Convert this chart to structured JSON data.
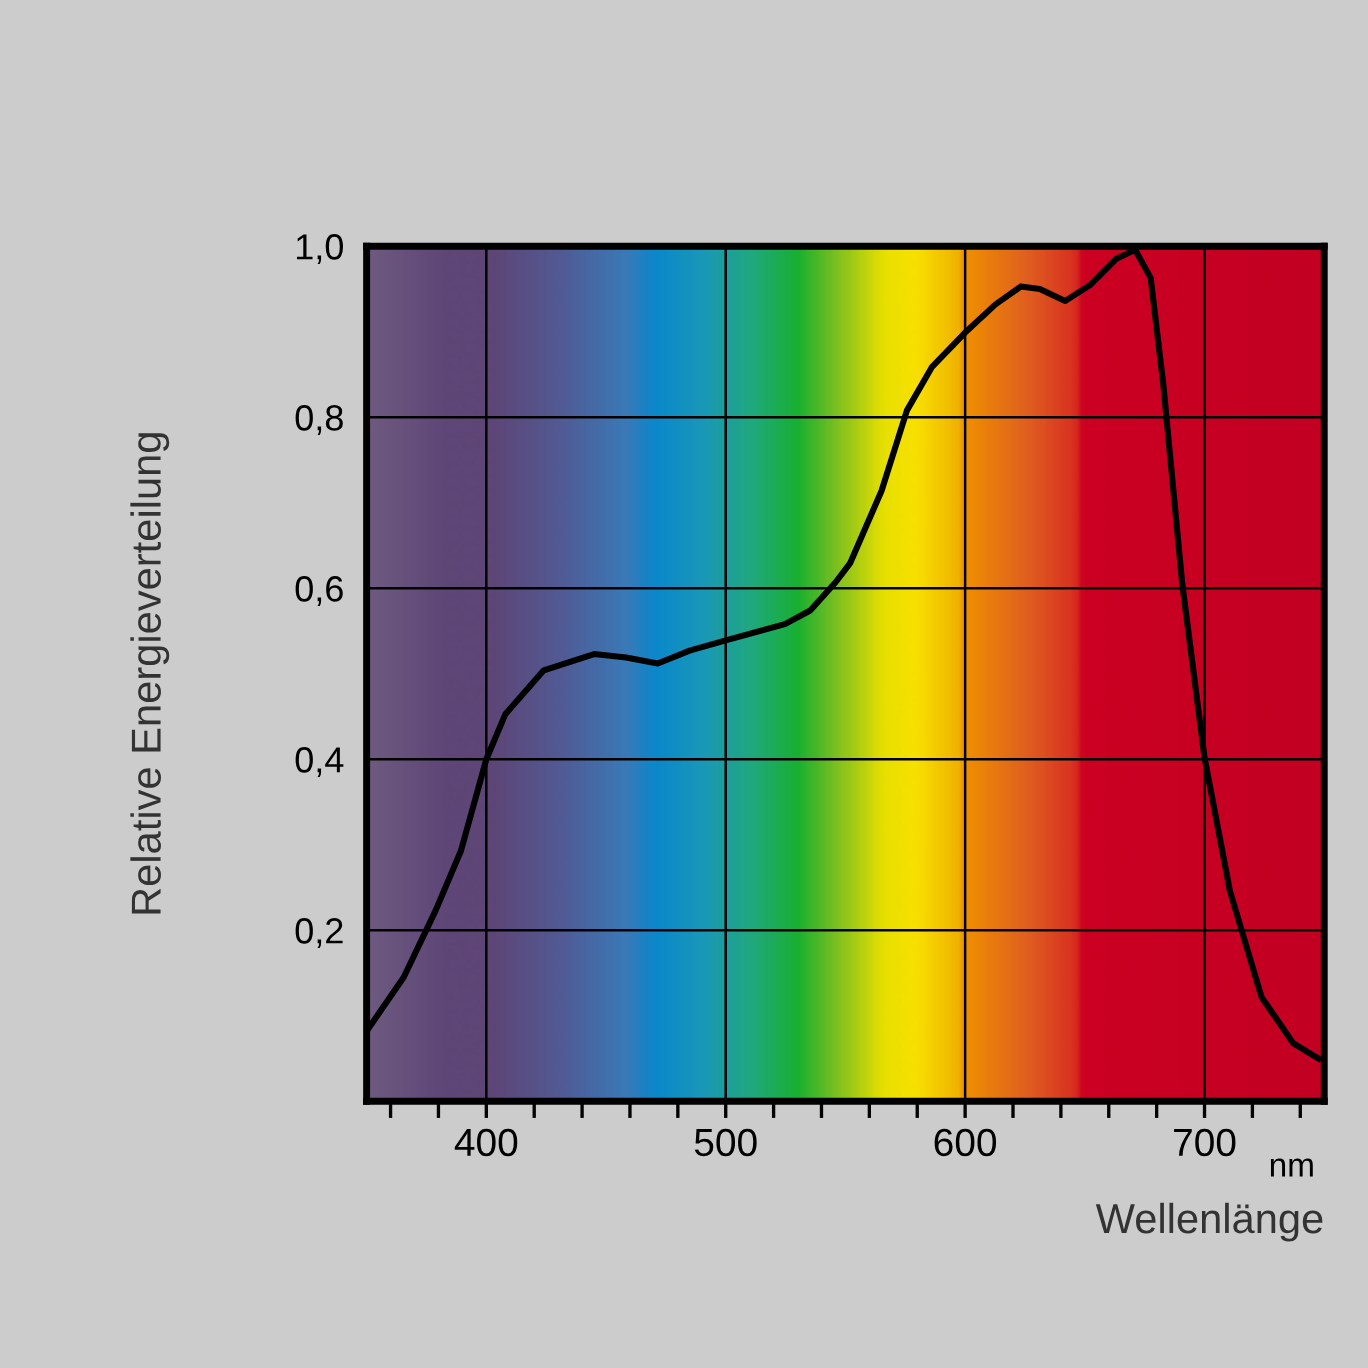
{
  "chart_data": {
    "type": "line",
    "xlabel": "Wellenlänge",
    "ylabel": "Relative Energieverteilung",
    "annotations": [
      "nm"
    ],
    "x": [
      350,
      365.5,
      378.8,
      389.4,
      400,
      408,
      424,
      445,
      458.4,
      471.6,
      484.9,
      500,
      524.7,
      535.3,
      545.9,
      551.9,
      565.1,
      575.7,
      586.2,
      600,
      612.7,
      623.3,
      631.2,
      641.8,
      652.4,
      663,
      671,
      677.5,
      682.8,
      690.7,
      700,
      710.6,
      723.8,
      737,
      747.6
    ],
    "series": [
      {
        "color": "#000000",
        "values": [
          0.082,
          0.145,
          0.223,
          0.293,
          0.4,
          0.453,
          0.504,
          0.523,
          0.519,
          0.512,
          0.527,
          0.539,
          0.558,
          0.574,
          0.607,
          0.629,
          0.714,
          0.808,
          0.859,
          0.899,
          0.932,
          0.953,
          0.95,
          0.936,
          0.955,
          0.985,
          0.996,
          0.963,
          0.838,
          0.605,
          0.402,
          0.246,
          0.122,
          0.068,
          0.05
        ]
      }
    ],
    "xlim": [
      350,
      750
    ],
    "ylim": [
      0,
      1.0
    ],
    "xticks": [
      {
        "value": 360,
        "label": null
      },
      {
        "value": 380,
        "label": null
      },
      400,
      {
        "value": 420,
        "label": null
      },
      {
        "value": 440,
        "label": null
      },
      {
        "value": 460,
        "label": null
      },
      {
        "value": 480,
        "label": null
      },
      500,
      {
        "value": 520,
        "label": null
      },
      {
        "value": 540,
        "label": null
      },
      {
        "value": 560,
        "label": null
      },
      {
        "value": 580,
        "label": null
      },
      600,
      {
        "value": 620,
        "label": null
      },
      {
        "value": 640,
        "label": null
      },
      {
        "value": 660,
        "label": null
      },
      {
        "value": 680,
        "label": null
      },
      700,
      {
        "value": 720,
        "label": null
      },
      {
        "value": 740,
        "label": null
      }
    ],
    "yticks": [
      {
        "value": 0.2,
        "label": "0,2"
      },
      {
        "value": 0.4,
        "label": "0,4"
      },
      {
        "value": 0.6,
        "label": "0,6"
      },
      {
        "value": 0.8,
        "label": "0,8"
      },
      {
        "value": 1.0,
        "label": "1,0"
      }
    ],
    "grid": true,
    "marker": "none",
    "line_style": "solid",
    "legend": false
  }
}
